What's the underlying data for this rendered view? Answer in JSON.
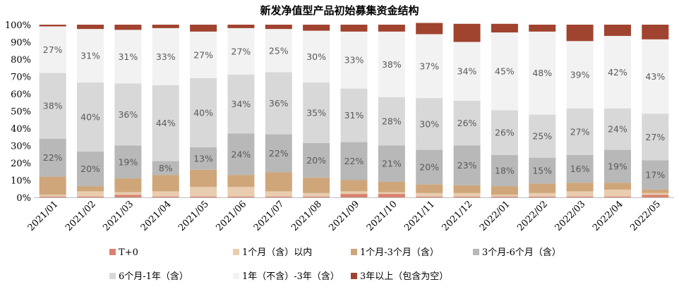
{
  "chart_data": {
    "type": "bar",
    "stacked": true,
    "title": "新发净值型产品初始募集资金结构",
    "xlabel": "",
    "ylabel": "",
    "ylim": [
      0,
      100
    ],
    "y_ticks": [
      "0%",
      "10%",
      "20%",
      "30%",
      "40%",
      "50%",
      "60%",
      "70%",
      "80%",
      "90%",
      "100%"
    ],
    "grid": false,
    "legend_position": "bottom",
    "categories": [
      "2021/01",
      "2021/02",
      "2021/03",
      "2021/04",
      "2021/05",
      "2021/06",
      "2021/07",
      "2021/08",
      "2021/09",
      "2021/10",
      "2021/11",
      "2021/12",
      "2022/01",
      "2022/02",
      "2022/03",
      "2022/04",
      "2022/05"
    ],
    "series": [
      {
        "name": "T+0",
        "color": "#D9826E",
        "values": [
          0.5,
          0.5,
          1.5,
          0.5,
          0.5,
          0.5,
          0.5,
          0.5,
          2,
          2,
          0.5,
          0.5,
          0.5,
          0.5,
          0.5,
          0.5,
          1.5
        ]
      },
      {
        "name": "1个月（含）以内",
        "color": "#E8CDB0",
        "values": [
          1,
          3,
          1.5,
          3,
          5.5,
          5.5,
          3,
          2,
          1.5,
          1,
          2,
          2,
          1,
          2,
          3,
          4,
          1
        ]
      },
      {
        "name": "1个月-3个月（含）",
        "color": "#CFA67A",
        "values": [
          10.5,
          3,
          8,
          9.5,
          10,
          7,
          11,
          9,
          6.5,
          6,
          5,
          4.5,
          5,
          5.5,
          5,
          4,
          2
        ]
      },
      {
        "name": "3个月-6个月（含）",
        "color": "#B8B8B8",
        "values": [
          22,
          20,
          19,
          8,
          13,
          24,
          22,
          20,
          22,
          21,
          20,
          23,
          18,
          15,
          16,
          19,
          17
        ]
      },
      {
        "name": "6个月-1年（含）",
        "color": "#D8D8D8",
        "values": [
          38,
          40,
          36,
          44,
          40,
          34,
          36,
          35,
          31,
          28,
          30,
          26,
          26,
          25,
          27,
          24,
          27
        ]
      },
      {
        "name": "1年（不含）-3年（含）",
        "color": "#F2F2F2",
        "values": [
          27,
          31,
          31,
          33,
          27,
          27,
          25,
          30,
          33,
          38,
          37,
          34,
          45,
          48,
          39,
          42,
          43
        ]
      },
      {
        "name": "3年以上（包含为空）",
        "color": "#A0432F",
        "values": [
          1,
          2.5,
          3,
          2,
          4,
          2,
          2.5,
          3.5,
          4,
          4,
          6.5,
          10.5,
          5,
          4,
          9.5,
          6.5,
          8.5
        ]
      }
    ],
    "data_labels": [
      {
        "series": 3,
        "labels": [
          "22%",
          "20%",
          "19%",
          "8%",
          "13%",
          "24%",
          "22%",
          "20%",
          "22%",
          "21%",
          "20%",
          "23%",
          "18%",
          "15%",
          "16%",
          "19%",
          "17%"
        ]
      },
      {
        "series": 4,
        "labels": [
          "38%",
          "40%",
          "36%",
          "44%",
          "40%",
          "34%",
          "36%",
          "35%",
          "31%",
          "28%",
          "30%",
          "26%",
          "26%",
          "25%",
          "27%",
          "24%",
          "27%"
        ]
      },
      {
        "series": 5,
        "labels": [
          "27%",
          "31%",
          "31%",
          "33%",
          "27%",
          "27%",
          "25%",
          "30%",
          "33%",
          "38%",
          "37%",
          "34%",
          "45%",
          "48%",
          "39%",
          "42%",
          "43%"
        ]
      }
    ]
  }
}
